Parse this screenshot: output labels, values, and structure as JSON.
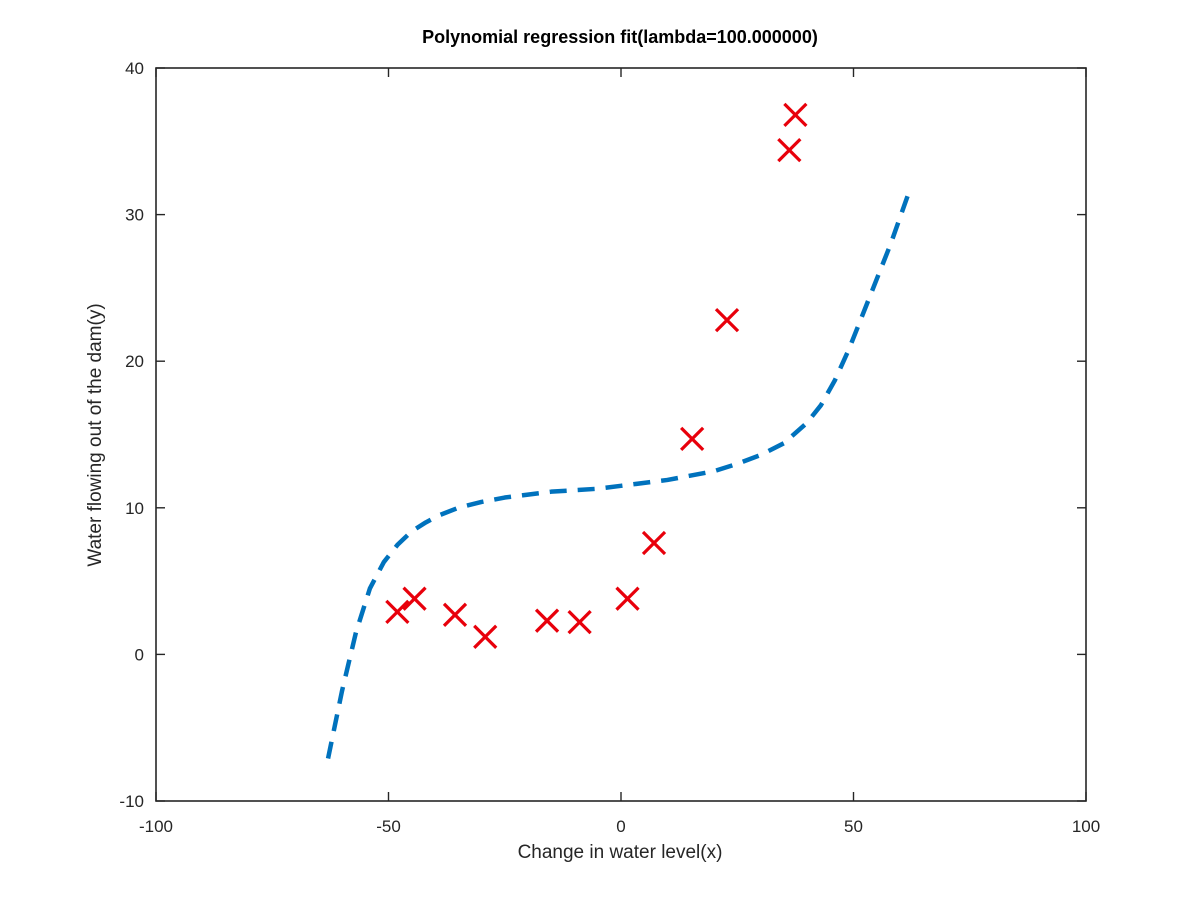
{
  "chart_data": {
    "type": "scatter",
    "title": "Polynomial regression fit(lambda=100.000000)",
    "xlabel": "Change in water level(x)",
    "ylabel": "Water flowing out of the dam(y)",
    "xlim": [
      -100,
      100
    ],
    "ylim": [
      -10,
      40
    ],
    "xticks": [
      -100,
      -50,
      0,
      50,
      100
    ],
    "yticks": [
      -10,
      0,
      10,
      20,
      30,
      40
    ],
    "xtick_labels": [
      "-100",
      "-50",
      "0",
      "50",
      "100"
    ],
    "ytick_labels": [
      "-10",
      "0",
      "10",
      "20",
      "30",
      "40"
    ],
    "grid": false,
    "colors": {
      "points": "#e8000b",
      "fit_line": "#0072bd",
      "axes": "#262626"
    },
    "series": [
      {
        "kind": "scatter",
        "marker": "x",
        "x": [
          -48.1,
          -44.4,
          -35.7,
          -29.2,
          -15.9,
          -8.9,
          1.4,
          7.1,
          15.3,
          22.8,
          36.2,
          37.5
        ],
        "y": [
          2.9,
          3.8,
          2.7,
          1.2,
          2.3,
          2.2,
          3.8,
          7.6,
          14.7,
          22.8,
          34.4,
          36.8
        ]
      },
      {
        "kind": "line",
        "style": "dashed",
        "x": [
          -63,
          -60,
          -57,
          -54,
          -51,
          -48,
          -45,
          -42,
          -39,
          -35,
          -30,
          -25,
          -20,
          -15,
          -10,
          -5,
          0,
          5,
          10,
          15,
          20,
          25,
          30,
          35,
          40,
          43,
          46,
          49,
          52,
          55,
          58,
          60,
          62
        ],
        "y": [
          -7.1,
          -2.5,
          1.5,
          4.5,
          6.3,
          7.5,
          8.4,
          9.0,
          9.5,
          10.0,
          10.4,
          10.7,
          10.9,
          11.1,
          11.2,
          11.3,
          11.5,
          11.7,
          11.9,
          12.2,
          12.5,
          13.0,
          13.6,
          14.4,
          15.8,
          17.0,
          18.7,
          20.8,
          23.2,
          25.6,
          28.0,
          29.8,
          31.6
        ]
      }
    ]
  }
}
